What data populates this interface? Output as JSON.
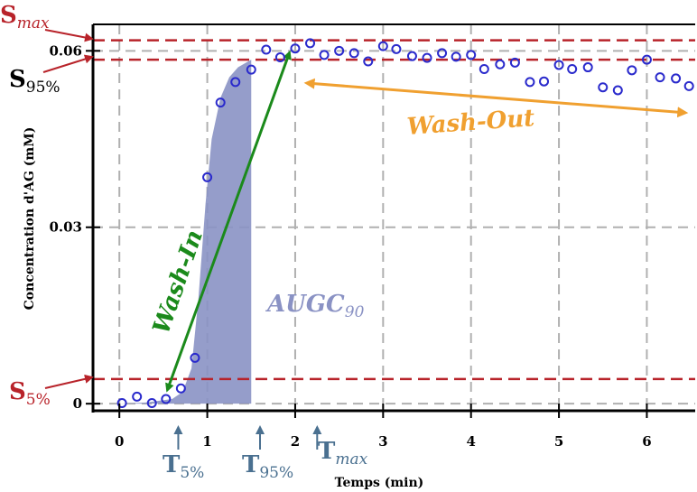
{
  "colors": {
    "threshold": "#b8232a",
    "points": "#2a2acc",
    "area": "#8a92c4",
    "wash_in": "#1b8a1b",
    "wash_out": "#f0a030",
    "time_marker": "#4a7090",
    "grid": "#b0b0b0"
  },
  "chart_data": {
    "type": "scatter",
    "xlabel": "Temps (min)",
    "ylabel": "Concentration d'AG (mM)",
    "xlim": [
      -0.3,
      6.55
    ],
    "ylim": [
      -0.0012,
      0.0645
    ],
    "x_ticks": [
      {
        "value": 0,
        "label": "0"
      },
      {
        "value": 1,
        "label": "1"
      },
      {
        "value": 2,
        "label": "2"
      },
      {
        "value": 3,
        "label": "3"
      },
      {
        "value": 4,
        "label": "4"
      },
      {
        "value": 5,
        "label": "5"
      },
      {
        "value": 6,
        "label": "6"
      }
    ],
    "y_ticks": [
      {
        "value": 0,
        "label": "0"
      },
      {
        "value": 0.03,
        "label": "0.03"
      },
      {
        "value": 0.06,
        "label": "0.06"
      }
    ],
    "grid": true,
    "series": [
      {
        "marker": "open-circle",
        "x": [
          0.03,
          0.2,
          0.37,
          0.53,
          0.7,
          0.86,
          1.0,
          1.15,
          1.32,
          1.5,
          1.67,
          1.83,
          2.0,
          2.17,
          2.33,
          2.5,
          2.67,
          2.83,
          3.0,
          3.15,
          3.33,
          3.5,
          3.67,
          3.83,
          4.0,
          4.15,
          4.33,
          4.5,
          4.67,
          4.83,
          5.0,
          5.15,
          5.33,
          5.5,
          5.67,
          5.83,
          6.0,
          6.15,
          6.33,
          6.48
        ],
        "y": [
          0.0001,
          0.0012,
          0.0001,
          0.0008,
          0.0026,
          0.0078,
          0.0385,
          0.0512,
          0.0547,
          0.0568,
          0.0602,
          0.0589,
          0.0604,
          0.0613,
          0.0593,
          0.06,
          0.0596,
          0.0582,
          0.0608,
          0.0603,
          0.0591,
          0.0588,
          0.0596,
          0.059,
          0.0593,
          0.0569,
          0.0577,
          0.058,
          0.0547,
          0.0548,
          0.0576,
          0.0569,
          0.0572,
          0.0538,
          0.0533,
          0.0567,
          0.0585,
          0.0555,
          0.0553,
          0.054
        ]
      }
    ],
    "area_under_curve": {
      "label": "AUGC",
      "label_sub": "90",
      "x": [
        0.0,
        0.3,
        0.6,
        0.72,
        0.82,
        0.9,
        0.98,
        1.05,
        1.15,
        1.25,
        1.35,
        1.5
      ],
      "y": [
        0.0,
        0.0002,
        0.0008,
        0.002,
        0.006,
        0.018,
        0.034,
        0.045,
        0.052,
        0.0555,
        0.0572,
        0.0585
      ]
    },
    "thresholds": [
      {
        "label": "S",
        "sub": "max",
        "sub_italic": true,
        "y": 0.0618,
        "color": "#b8232a"
      },
      {
        "label": "S",
        "sub": "95%",
        "sub_italic": false,
        "y": 0.0585,
        "color": "#000000"
      },
      {
        "label": "S",
        "sub": "5%",
        "sub_italic": false,
        "y": 0.0042,
        "color": "#b8232a"
      }
    ],
    "time_markers": [
      {
        "label": "T",
        "sub": "5%",
        "sub_italic": false,
        "x": 0.67
      },
      {
        "label": "T",
        "sub": "95%",
        "sub_italic": false,
        "x": 1.6
      },
      {
        "label": "T",
        "sub": "max",
        "sub_italic": true,
        "x": 2.25
      }
    ],
    "annotations": [
      {
        "text": "Wash-In",
        "from": [
          0.55,
          0.0025
        ],
        "to": [
          1.93,
          0.0595
        ],
        "color": "#1b8a1b"
      },
      {
        "text": "Wash-Out",
        "from": [
          2.15,
          0.0545
        ],
        "to": [
          6.42,
          0.0495
        ],
        "color": "#f0a030"
      }
    ]
  }
}
